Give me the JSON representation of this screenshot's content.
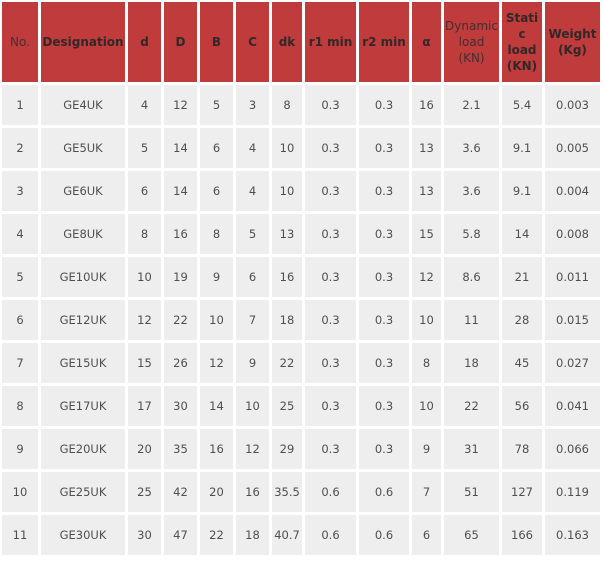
{
  "colors": {
    "header_bg": "#bf3b3c",
    "header_text": "#322828",
    "cell_bg": "#efeeee",
    "cell_text": "#4f4f4f",
    "grid_gap": "#ffffff"
  },
  "table": {
    "columns": [
      {
        "label": "No.",
        "bold": false
      },
      {
        "label": "Designation",
        "bold": true
      },
      {
        "label": "d",
        "bold": true
      },
      {
        "label": "D",
        "bold": true
      },
      {
        "label": "B",
        "bold": true
      },
      {
        "label": "C",
        "bold": true
      },
      {
        "label": "dk",
        "bold": true
      },
      {
        "label": "r1 min",
        "bold": true
      },
      {
        "label": "r2 min",
        "bold": true
      },
      {
        "label": "α",
        "bold": true
      },
      {
        "label": "Dynamic load (KN)",
        "bold": false
      },
      {
        "label": "Static load (KN)",
        "bold": true
      },
      {
        "label": "Weight (Kg)",
        "bold": true
      }
    ],
    "rows": [
      [
        "1",
        "GE4UK",
        "4",
        "12",
        "5",
        "3",
        "8",
        "0.3",
        "0.3",
        "16",
        "2.1",
        "5.4",
        "0.003"
      ],
      [
        "2",
        "GE5UK",
        "5",
        "14",
        "6",
        "4",
        "10",
        "0.3",
        "0.3",
        "13",
        "3.6",
        "9.1",
        "0.005"
      ],
      [
        "3",
        "GE6UK",
        "6",
        "14",
        "6",
        "4",
        "10",
        "0.3",
        "0.3",
        "13",
        "3.6",
        "9.1",
        "0.004"
      ],
      [
        "4",
        "GE8UK",
        "8",
        "16",
        "8",
        "5",
        "13",
        "0.3",
        "0.3",
        "15",
        "5.8",
        "14",
        "0.008"
      ],
      [
        "5",
        "GE10UK",
        "10",
        "19",
        "9",
        "6",
        "16",
        "0.3",
        "0.3",
        "12",
        "8.6",
        "21",
        "0.011"
      ],
      [
        "6",
        "GE12UK",
        "12",
        "22",
        "10",
        "7",
        "18",
        "0.3",
        "0.3",
        "10",
        "11",
        "28",
        "0.015"
      ],
      [
        "7",
        "GE15UK",
        "15",
        "26",
        "12",
        "9",
        "22",
        "0.3",
        "0.3",
        "8",
        "18",
        "45",
        "0.027"
      ],
      [
        "8",
        "GE17UK",
        "17",
        "30",
        "14",
        "10",
        "25",
        "0.3",
        "0.3",
        "10",
        "22",
        "56",
        "0.041"
      ],
      [
        "9",
        "GE20UK",
        "20",
        "35",
        "16",
        "12",
        "29",
        "0.3",
        "0.3",
        "9",
        "31",
        "78",
        "0.066"
      ],
      [
        "10",
        "GE25UK",
        "25",
        "42",
        "20",
        "16",
        "35.5",
        "0.6",
        "0.6",
        "7",
        "51",
        "127",
        "0.119"
      ],
      [
        "11",
        "GE30UK",
        "30",
        "47",
        "22",
        "18",
        "40.7",
        "0.6",
        "0.6",
        "6",
        "65",
        "166",
        "0.163"
      ]
    ]
  },
  "chart_data": {
    "type": "table",
    "title": "GE..UK spherical plain bearing specifications",
    "columns": [
      "No.",
      "Designation",
      "d",
      "D",
      "B",
      "C",
      "dk",
      "r1 min",
      "r2 min",
      "α",
      "Dynamic load (KN)",
      "Static load (KN)",
      "Weight (Kg)"
    ],
    "rows": [
      [
        1,
        "GE4UK",
        4,
        12,
        5,
        3,
        8,
        0.3,
        0.3,
        16,
        2.1,
        5.4,
        0.003
      ],
      [
        2,
        "GE5UK",
        5,
        14,
        6,
        4,
        10,
        0.3,
        0.3,
        13,
        3.6,
        9.1,
        0.005
      ],
      [
        3,
        "GE6UK",
        6,
        14,
        6,
        4,
        10,
        0.3,
        0.3,
        13,
        3.6,
        9.1,
        0.004
      ],
      [
        4,
        "GE8UK",
        8,
        16,
        8,
        5,
        13,
        0.3,
        0.3,
        15,
        5.8,
        14,
        0.008
      ],
      [
        5,
        "GE10UK",
        10,
        19,
        9,
        6,
        16,
        0.3,
        0.3,
        12,
        8.6,
        21,
        0.011
      ],
      [
        6,
        "GE12UK",
        12,
        22,
        10,
        7,
        18,
        0.3,
        0.3,
        10,
        11,
        28,
        0.015
      ],
      [
        7,
        "GE15UK",
        15,
        26,
        12,
        9,
        22,
        0.3,
        0.3,
        8,
        18,
        45,
        0.027
      ],
      [
        8,
        "GE17UK",
        17,
        30,
        14,
        10,
        25,
        0.3,
        0.3,
        10,
        22,
        56,
        0.041
      ],
      [
        9,
        "GE20UK",
        20,
        35,
        16,
        12,
        29,
        0.3,
        0.3,
        9,
        31,
        78,
        0.066
      ],
      [
        10,
        "GE25UK",
        25,
        42,
        20,
        16,
        35.5,
        0.6,
        0.6,
        7,
        51,
        127,
        0.119
      ],
      [
        11,
        "GE30UK",
        30,
        47,
        22,
        18,
        40.7,
        0.6,
        0.6,
        6,
        65,
        166,
        0.163
      ]
    ]
  }
}
